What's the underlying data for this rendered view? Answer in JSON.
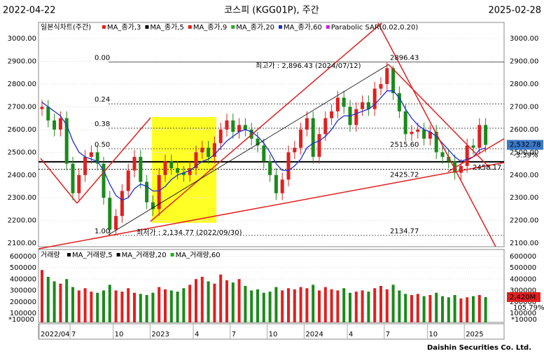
{
  "header": {
    "start": "2022-04-22",
    "title": "코스피 (KGG01P), 주간",
    "end": "2025-02-28"
  },
  "footer": "Daishin Securities Co. Ltd.",
  "chart_data": [
    {
      "type": "candlestick",
      "legend_title": "일본식차트(주간)",
      "legend": [
        {
          "name": "MA_종가,3",
          "color": "#e02020"
        },
        {
          "name": "MA_종가,5",
          "color": "#000000"
        },
        {
          "name": "MA_종가,9",
          "color": "#e02020"
        },
        {
          "name": "MA_종가,20",
          "color": "#20b020"
        },
        {
          "name": "MA_종가,60",
          "color": "#1c2fd0"
        },
        {
          "name": "Parabolic SAR(0.02,0.20)",
          "color": "#d020d0"
        }
      ],
      "categories": [
        "2022/04",
        null,
        null,
        null,
        null,
        "7",
        null,
        null,
        null,
        null,
        null,
        null,
        "10",
        null,
        null,
        null,
        null,
        null,
        "2023",
        null,
        null,
        null,
        null,
        null,
        null,
        "4",
        null,
        null,
        null,
        null,
        null,
        "7",
        null,
        null,
        null,
        null,
        null,
        "10",
        null,
        null,
        null,
        null,
        null,
        "2024",
        null,
        null,
        null,
        null,
        null,
        null,
        "4",
        null,
        null,
        null,
        null,
        null,
        "7",
        null,
        null,
        null,
        null,
        null,
        null,
        "10",
        null,
        null,
        null,
        null,
        null,
        "2025",
        null,
        null,
        null
      ],
      "open": [
        2690,
        2700,
        2640,
        2600,
        2650,
        2450,
        2320,
        2400,
        2480,
        2500,
        2450,
        2300,
        2160,
        2220,
        2330,
        2420,
        2480,
        2370,
        2280,
        2250,
        2400,
        2460,
        2430,
        2410,
        2400,
        2430,
        2500,
        2520,
        2480,
        2540,
        2600,
        2640,
        2590,
        2620,
        2600,
        2560,
        2530,
        2460,
        2400,
        2320,
        2380,
        2500,
        2520,
        2600,
        2650,
        2480,
        2580,
        2650,
        2680,
        2740,
        2700,
        2620,
        2690,
        2720,
        2690,
        2780,
        2800,
        2870,
        2760,
        2680,
        2580,
        2590,
        2600,
        2560,
        2590,
        2500,
        2480,
        2460,
        2410,
        2440,
        2530,
        2520,
        2620
      ],
      "high": [
        2730,
        2730,
        2670,
        2680,
        2680,
        2480,
        2430,
        2510,
        2530,
        2530,
        2480,
        2330,
        2250,
        2360,
        2450,
        2510,
        2510,
        2400,
        2310,
        2430,
        2490,
        2490,
        2460,
        2440,
        2460,
        2530,
        2550,
        2550,
        2570,
        2630,
        2670,
        2670,
        2650,
        2650,
        2630,
        2590,
        2560,
        2490,
        2430,
        2410,
        2530,
        2550,
        2630,
        2680,
        2680,
        2610,
        2680,
        2710,
        2770,
        2770,
        2730,
        2720,
        2750,
        2750,
        2810,
        2830,
        2896.43,
        2880,
        2790,
        2710,
        2620,
        2630,
        2630,
        2620,
        2620,
        2530,
        2510,
        2490,
        2470,
        2560,
        2560,
        2650,
        2650
      ],
      "low": [
        2660,
        2610,
        2570,
        2570,
        2420,
        2290,
        2290,
        2370,
        2450,
        2420,
        2270,
        2134.77,
        2140,
        2190,
        2300,
        2390,
        2340,
        2250,
        2220,
        2220,
        2370,
        2400,
        2380,
        2370,
        2370,
        2400,
        2470,
        2450,
        2450,
        2510,
        2570,
        2560,
        2560,
        2570,
        2530,
        2500,
        2430,
        2370,
        2290,
        2290,
        2350,
        2470,
        2490,
        2570,
        2450,
        2450,
        2550,
        2620,
        2650,
        2670,
        2590,
        2590,
        2660,
        2660,
        2660,
        2750,
        2770,
        2730,
        2650,
        2550,
        2550,
        2560,
        2530,
        2530,
        2470,
        2450,
        2430,
        2380,
        2380,
        2410,
        2490,
        2490,
        2500
      ],
      "close": [
        2700,
        2640,
        2600,
        2650,
        2450,
        2320,
        2400,
        2480,
        2500,
        2450,
        2300,
        2160,
        2220,
        2330,
        2420,
        2480,
        2370,
        2280,
        2250,
        2400,
        2460,
        2430,
        2410,
        2400,
        2430,
        2500,
        2520,
        2480,
        2540,
        2600,
        2640,
        2590,
        2620,
        2600,
        2560,
        2530,
        2460,
        2400,
        2320,
        2380,
        2500,
        2520,
        2600,
        2650,
        2480,
        2580,
        2650,
        2680,
        2740,
        2700,
        2620,
        2690,
        2720,
        2690,
        2780,
        2800,
        2870,
        2760,
        2680,
        2580,
        2590,
        2600,
        2560,
        2590,
        2500,
        2480,
        2460,
        2410,
        2440,
        2530,
        2520,
        2620,
        2532.78
      ],
      "up_color": "#e02020",
      "down_color": "#1a8a1a",
      "series": [
        {
          "name": "MA_종가,60",
          "color": "#1c2fd0",
          "values": [
            2720,
            2700,
            2680,
            2660,
            2620,
            2550,
            2500,
            2480,
            2470,
            2460,
            2420,
            2360,
            2310,
            2290,
            2300,
            2340,
            2360,
            2350,
            2330,
            2330,
            2350,
            2380,
            2400,
            2410,
            2420,
            2440,
            2460,
            2470,
            2490,
            2520,
            2550,
            2570,
            2590,
            2600,
            2590,
            2570,
            2540,
            2500,
            2450,
            2420,
            2420,
            2440,
            2470,
            2520,
            2540,
            2550,
            2570,
            2600,
            2640,
            2660,
            2660,
            2670,
            2680,
            2690,
            2710,
            2740,
            2770,
            2770,
            2740,
            2690,
            2650,
            2620,
            2600,
            2590,
            2570,
            2540,
            2510,
            2480,
            2460,
            2470,
            2480,
            2510,
            2520
          ]
        }
      ],
      "ylim": [
        2085,
        3071
      ],
      "yticks": [
        {
          "value": 2100,
          "label": "2100.00"
        },
        {
          "value": 2200,
          "label": "2200.00"
        },
        {
          "value": 2300,
          "label": "2300.00"
        },
        {
          "value": 2400,
          "label": "2400.00"
        },
        {
          "value": 2500,
          "label": "2500.00"
        },
        {
          "value": 2600,
          "label": "2600.00"
        },
        {
          "value": 2700,
          "label": "2700.00"
        },
        {
          "value": 2800,
          "label": "2800.00"
        },
        {
          "value": 2900,
          "label": "2900.00"
        },
        {
          "value": 3000,
          "label": "3000.00"
        }
      ],
      "fib": [
        {
          "ratio": "0.00",
          "value": 2896.43,
          "value_label": "2896.43"
        },
        {
          "ratio": "0.24",
          "value": 2713
        },
        {
          "ratio": "0.38",
          "value": 2606
        },
        {
          "ratio": "0.50",
          "value": 2515.6,
          "value_label": "2515.60"
        },
        {
          "ratio": "1.00",
          "value": 2134.77,
          "value_label": "2134.77"
        }
      ],
      "levels": [
        {
          "value": 2458.17,
          "label": "2458.17"
        },
        {
          "value": 2425.72,
          "label": "2425.72"
        }
      ],
      "high_note": "최고가 : 2,896.43 (2024/07/12)",
      "low_note": "최저가 : 2,134.77 (2022/09/30)",
      "last_label": "2,532.78",
      "change": "-3.39%"
    },
    {
      "type": "bar",
      "legend_title": "거래량",
      "legend": [
        {
          "name": "MA_거래량,5",
          "color": "#000000"
        },
        {
          "name": "MA_거래량,20",
          "color": "#000000"
        },
        {
          "name": "MA_거래량,60",
          "color": "#20b020"
        }
      ],
      "values": [
        480000,
        420000,
        380000,
        360000,
        400000,
        330000,
        300000,
        320000,
        290000,
        280000,
        300000,
        350000,
        300000,
        290000,
        320000,
        280000,
        270000,
        260000,
        280000,
        330000,
        310000,
        300000,
        290000,
        320000,
        350000,
        400000,
        420000,
        380000,
        360000,
        440000,
        390000,
        370000,
        400000,
        340000,
        300000,
        310000,
        280000,
        290000,
        330000,
        300000,
        320000,
        310000,
        330000,
        320000,
        350000,
        300000,
        330000,
        310000,
        300000,
        320000,
        280000,
        290000,
        300000,
        290000,
        320000,
        340000,
        310000,
        350000,
        300000,
        270000,
        260000,
        270000,
        250000,
        260000,
        280000,
        250000,
        240000,
        260000,
        230000,
        240000,
        250000,
        260000,
        242000
      ],
      "ylim": [
        20000,
        660000
      ],
      "yticks": [
        100000,
        200000,
        300000,
        400000,
        500000,
        600000
      ],
      "unit": "*10000",
      "last_label": "2,420M",
      "ratio": "105.79%"
    }
  ]
}
